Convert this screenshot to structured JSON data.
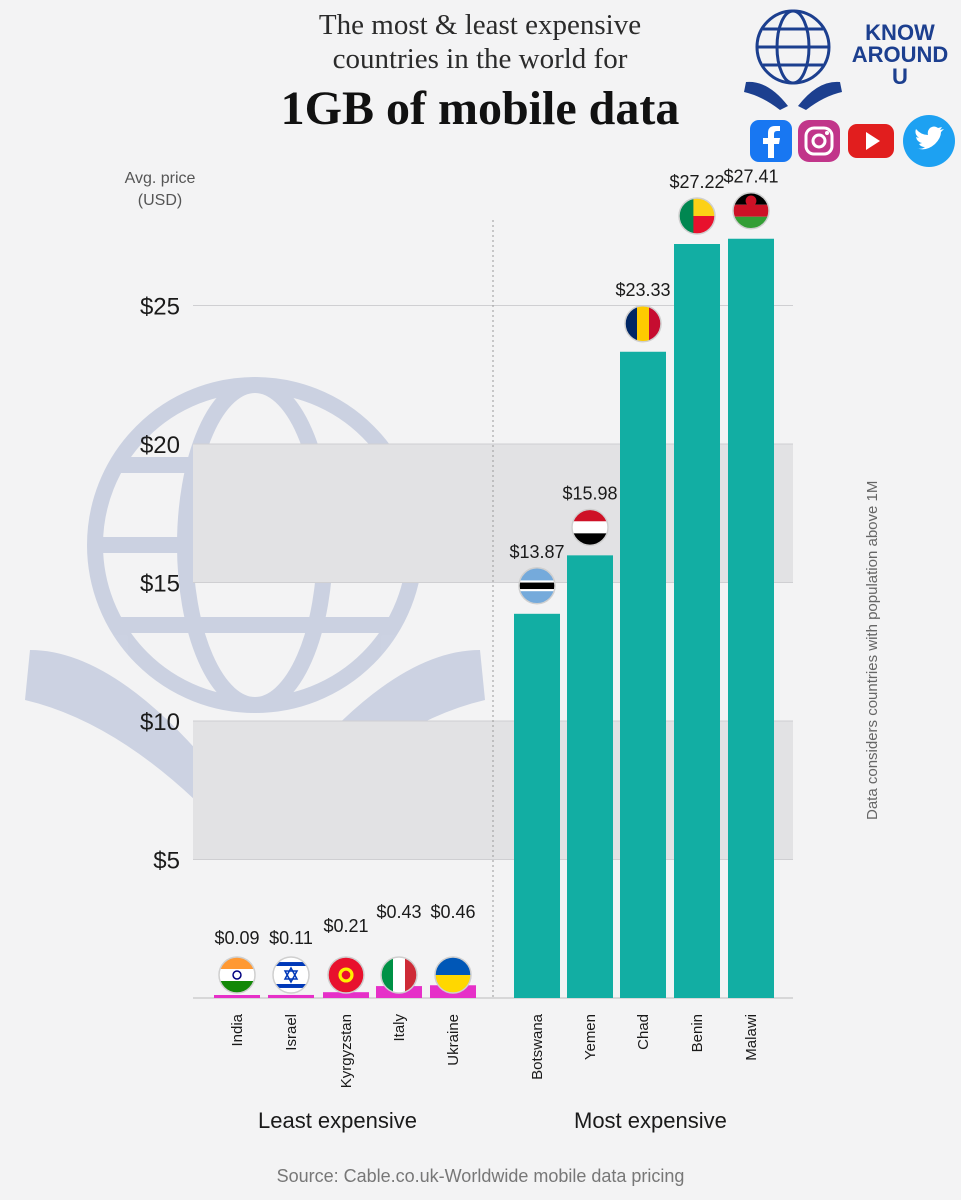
{
  "title": {
    "line1": "The most & least expensive",
    "line2": "countries in the world for",
    "line3": "1GB of mobile data"
  },
  "brand": {
    "line1": "KNOW",
    "line2": "AROUND",
    "line3": "U",
    "color": "#1c3f8f",
    "social_icons": [
      "facebook-icon",
      "instagram-icon",
      "youtube-icon",
      "twitter-icon"
    ]
  },
  "side_note": "Data considers countries with population above 1M",
  "source": "Source: Cable.co.uk-Worldwide mobile data pricing",
  "chart_data": {
    "type": "bar",
    "title": "1GB of mobile data",
    "ylabel": "Avg. price (USD)",
    "ylabel_line1": "Avg. price",
    "ylabel_line2": "(USD)",
    "ylim": [
      0,
      27.41
    ],
    "yticks": [
      {
        "value": 5,
        "label": "$5"
      },
      {
        "value": 10,
        "label": "$10"
      },
      {
        "value": 15,
        "label": "$15"
      },
      {
        "value": 20,
        "label": "$20"
      },
      {
        "value": 25,
        "label": "$25"
      }
    ],
    "groups": [
      {
        "name": "Least expensive",
        "color": "#e630c8"
      },
      {
        "name": "Most expensive",
        "color": "#12aea3"
      }
    ],
    "categories": [
      "India",
      "Israel",
      "Kyrgyzstan",
      "Italy",
      "Ukraine",
      "Botswana",
      "Yemen",
      "Chad",
      "Benin",
      "Malawi"
    ],
    "values": [
      0.09,
      0.11,
      0.21,
      0.43,
      0.46,
      13.87,
      15.98,
      23.33,
      27.22,
      27.41
    ],
    "value_labels": [
      "$0.09",
      "$0.11",
      "$0.21",
      "$0.43",
      "$0.46",
      "$13.87",
      "$15.98",
      "$23.33",
      "$27.22",
      "$27.41"
    ],
    "group_index": [
      0,
      0,
      0,
      0,
      0,
      1,
      1,
      1,
      1,
      1
    ],
    "flags": [
      "india-flag-icon",
      "israel-flag-icon",
      "kyrgyzstan-flag-icon",
      "italy-flag-icon",
      "ukraine-flag-icon",
      "botswana-flag-icon",
      "yemen-flag-icon",
      "chad-flag-icon",
      "benin-flag-icon",
      "malawi-flag-icon"
    ]
  }
}
